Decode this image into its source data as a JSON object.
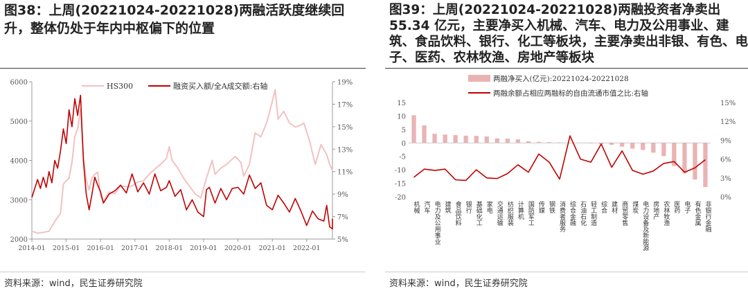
{
  "figure_left": {
    "title": "图38：上周(20221024-20221028)两融活跃度继续回升，整体仍处于年内中枢偏下的位置",
    "source": "资料来源：wind，民生证券研究院"
  },
  "figure_right": {
    "title": "图39：上周(20221024-20221028)两融投资者净卖出 55.34 亿元，主要净买入机械、汽车、电力及公用事业、建筑、食品饮料、银行、化工等板块，主要净卖出非银、有色、电子、医药、农林牧渔、房地产等板块",
    "source": "资料来源：wind，民生证券研究院"
  },
  "colors": {
    "hs300": "#f2c1c1",
    "ratio_line": "#c00000",
    "bar": "#eab3b3",
    "axis": "#999999",
    "text": "#555555"
  },
  "chart_data": [
    {
      "type": "line",
      "title": "",
      "legend": {
        "placement": "top-center",
        "entries": [
          "HS300",
          "融资买入额/全A成交额:右轴"
        ]
      },
      "x_ticks": [
        "2014-01",
        "2015-01",
        "2016-01",
        "2017-01",
        "2018-01",
        "2019-01",
        "2020-01",
        "2021-01",
        "2022-01"
      ],
      "x_range": [
        "2014-01",
        "2022-10"
      ],
      "y_left": {
        "ticks": [
          "2000",
          "3000",
          "4000",
          "5000",
          "6000"
        ],
        "range": [
          2000,
          6000
        ]
      },
      "y_right": {
        "ticks": [
          "5%",
          "7%",
          "9%",
          "11%",
          "13%",
          "15%",
          "17%",
          "19%"
        ],
        "range": [
          5,
          19
        ]
      },
      "grid": false,
      "series": [
        {
          "name": "HS300",
          "axis": "left",
          "points": [
            [
              "2014-01",
              2200
            ],
            [
              "2014-03",
              2150
            ],
            [
              "2014-05",
              2170
            ],
            [
              "2014-07",
              2200
            ],
            [
              "2014-09",
              2450
            ],
            [
              "2014-11",
              2650
            ],
            [
              "2014-12",
              3400
            ],
            [
              "2015-02",
              3550
            ],
            [
              "2015-03",
              3950
            ],
            [
              "2015-04",
              4600
            ],
            [
              "2015-05",
              4800
            ],
            [
              "2015-06",
              5300
            ],
            [
              "2015-07",
              4100
            ],
            [
              "2015-08",
              3500
            ],
            [
              "2015-09",
              3250
            ],
            [
              "2015-10",
              3550
            ],
            [
              "2015-11",
              3650
            ],
            [
              "2015-12",
              3700
            ],
            [
              "2016-01",
              3100
            ],
            [
              "2016-02",
              2950
            ],
            [
              "2016-04",
              3200
            ],
            [
              "2016-06",
              3150
            ],
            [
              "2016-08",
              3350
            ],
            [
              "2016-10",
              3330
            ],
            [
              "2016-12",
              3350
            ],
            [
              "2017-02",
              3450
            ],
            [
              "2017-04",
              3480
            ],
            [
              "2017-06",
              3650
            ],
            [
              "2017-08",
              3780
            ],
            [
              "2017-10",
              3900
            ],
            [
              "2017-12",
              4050
            ],
            [
              "2018-01",
              4350
            ],
            [
              "2018-02",
              4000
            ],
            [
              "2018-04",
              3800
            ],
            [
              "2018-06",
              3550
            ],
            [
              "2018-08",
              3350
            ],
            [
              "2018-10",
              3150
            ],
            [
              "2018-12",
              3050
            ],
            [
              "2019-02",
              3550
            ],
            [
              "2019-04",
              4000
            ],
            [
              "2019-05",
              3650
            ],
            [
              "2019-07",
              3800
            ],
            [
              "2019-09",
              3900
            ],
            [
              "2019-12",
              4100
            ],
            [
              "2020-02",
              3950
            ],
            [
              "2020-03",
              3600
            ],
            [
              "2020-05",
              3900
            ],
            [
              "2020-07",
              4700
            ],
            [
              "2020-09",
              4600
            ],
            [
              "2020-11",
              4950
            ],
            [
              "2021-01",
              5500
            ],
            [
              "2021-02",
              5800
            ],
            [
              "2021-03",
              5050
            ],
            [
              "2021-05",
              5250
            ],
            [
              "2021-07",
              4950
            ],
            [
              "2021-09",
              4850
            ],
            [
              "2021-11",
              4900
            ],
            [
              "2021-12",
              4950
            ],
            [
              "2022-02",
              4500
            ],
            [
              "2022-04",
              3900
            ],
            [
              "2022-06",
              4400
            ],
            [
              "2022-08",
              4150
            ],
            [
              "2022-09",
              3900
            ],
            [
              "2022-10",
              3750
            ]
          ]
        },
        {
          "name": "融资买入额/全A成交额:右轴",
          "axis": "right",
          "points": [
            [
              "2014-01",
              8.7
            ],
            [
              "2014-03",
              10.3
            ],
            [
              "2014-04",
              9.5
            ],
            [
              "2014-05",
              10.5
            ],
            [
              "2014-06",
              9.6
            ],
            [
              "2014-07",
              11.0
            ],
            [
              "2014-08",
              10.0
            ],
            [
              "2014-09",
              12.0
            ],
            [
              "2014-10",
              11.3
            ],
            [
              "2014-11",
              12.8
            ],
            [
              "2014-12",
              14.8
            ],
            [
              "2015-01",
              13.5
            ],
            [
              "2015-02",
              16.5
            ],
            [
              "2015-03",
              15.0
            ],
            [
              "2015-04",
              17.5
            ],
            [
              "2015-05",
              16.0
            ],
            [
              "2015-06",
              17.8
            ],
            [
              "2015-07",
              12.0
            ],
            [
              "2015-08",
              9.0
            ],
            [
              "2015-09",
              7.6
            ],
            [
              "2015-10",
              9.0
            ],
            [
              "2015-11",
              10.5
            ],
            [
              "2015-12",
              9.8
            ],
            [
              "2016-01",
              9.2
            ],
            [
              "2016-02",
              8.2
            ],
            [
              "2016-04",
              9.0
            ],
            [
              "2016-06",
              9.3
            ],
            [
              "2016-08",
              9.8
            ],
            [
              "2016-10",
              9.1
            ],
            [
              "2016-12",
              10.8
            ],
            [
              "2017-02",
              9.2
            ],
            [
              "2017-04",
              10.0
            ],
            [
              "2017-06",
              9.0
            ],
            [
              "2017-08",
              10.8
            ],
            [
              "2017-10",
              9.3
            ],
            [
              "2017-12",
              9.6
            ],
            [
              "2018-01",
              10.2
            ],
            [
              "2018-03",
              8.8
            ],
            [
              "2018-05",
              9.4
            ],
            [
              "2018-07",
              7.6
            ],
            [
              "2018-09",
              8.5
            ],
            [
              "2018-11",
              7.4
            ],
            [
              "2019-01",
              7.0
            ],
            [
              "2019-02",
              9.4
            ],
            [
              "2019-03",
              9.6
            ],
            [
              "2019-05",
              8.2
            ],
            [
              "2019-07",
              9.5
            ],
            [
              "2019-09",
              8.5
            ],
            [
              "2019-11",
              9.5
            ],
            [
              "2020-01",
              9.6
            ],
            [
              "2020-03",
              9.0
            ],
            [
              "2020-05",
              10.7
            ],
            [
              "2020-07",
              9.5
            ],
            [
              "2020-09",
              10.0
            ],
            [
              "2020-11",
              8.0
            ],
            [
              "2021-01",
              7.6
            ],
            [
              "2021-03",
              8.9
            ],
            [
              "2021-05",
              8.2
            ],
            [
              "2021-07",
              7.4
            ],
            [
              "2021-09",
              8.6
            ],
            [
              "2021-11",
              7.5
            ],
            [
              "2022-01",
              6.2
            ],
            [
              "2022-03",
              7.5
            ],
            [
              "2022-05",
              6.8
            ],
            [
              "2022-07",
              6.6
            ],
            [
              "2022-08",
              8.0
            ],
            [
              "2022-09",
              6.1
            ],
            [
              "2022-10",
              5.9
            ],
            [
              "2022-10",
              6.8
            ]
          ]
        }
      ]
    },
    {
      "type": "bar",
      "title": "",
      "legend": {
        "placement": "top-left",
        "entries": [
          "两融净买入(亿元):20221024-20221028",
          "两融余额占相应两融标的自由流通市值之比:右轴"
        ]
      },
      "categories": [
        "机械",
        "汽车",
        "电力及公用事业",
        "建筑",
        "食品饮料",
        "银行",
        "基础化工",
        "家电",
        "交通运输",
        "纺织服装",
        "计算机",
        "国防军工",
        "传媒",
        "钢铁",
        "消费者服务",
        "综合金融",
        "石油石化",
        "轻工制造",
        "综合",
        "建材",
        "商贸零售",
        "煤炭",
        "电力设备及新能源",
        "房地产",
        "农林牧渔",
        "医药",
        "电子",
        "有色金属",
        "非银行金融"
      ],
      "y_left": {
        "ticks": [
          "-20",
          "-15",
          "-10",
          "-5",
          "0",
          "5",
          "10",
          "15"
        ],
        "range": [
          -20,
          15
        ]
      },
      "y_right": {
        "ticks": [
          "0%",
          "3%",
          "6%",
          "9%",
          "12%",
          "15%"
        ],
        "range": [
          0,
          15
        ]
      },
      "grid": false,
      "series": [
        {
          "name": "两融净买入(亿元):20221024-20221028",
          "kind": "bar",
          "axis": "left",
          "values": [
            10.3,
            6.5,
            3.4,
            3.1,
            2.9,
            2.7,
            2.6,
            2.4,
            1.7,
            1.6,
            1.3,
            0.6,
            0.4,
            0.3,
            0.2,
            0.1,
            0.1,
            -0.1,
            -0.4,
            -0.7,
            -1.4,
            -2.1,
            -2.6,
            -3.6,
            -4.9,
            -8.6,
            -11.3,
            -13.6,
            -16.4
          ]
        },
        {
          "name": "两融余额占相应两融标的自由流通市值之比:右轴",
          "kind": "line",
          "axis": "right",
          "values": [
            3.1,
            4.4,
            4.2,
            4.4,
            2.7,
            2.6,
            4.3,
            3.0,
            2.9,
            3.7,
            5.1,
            3.9,
            6.8,
            5.5,
            2.8,
            9.7,
            6.0,
            5.5,
            8.4,
            4.7,
            7.3,
            4.2,
            3.6,
            4.1,
            5.3,
            5.6,
            3.9,
            4.6,
            5.9
          ]
        }
      ]
    }
  ]
}
